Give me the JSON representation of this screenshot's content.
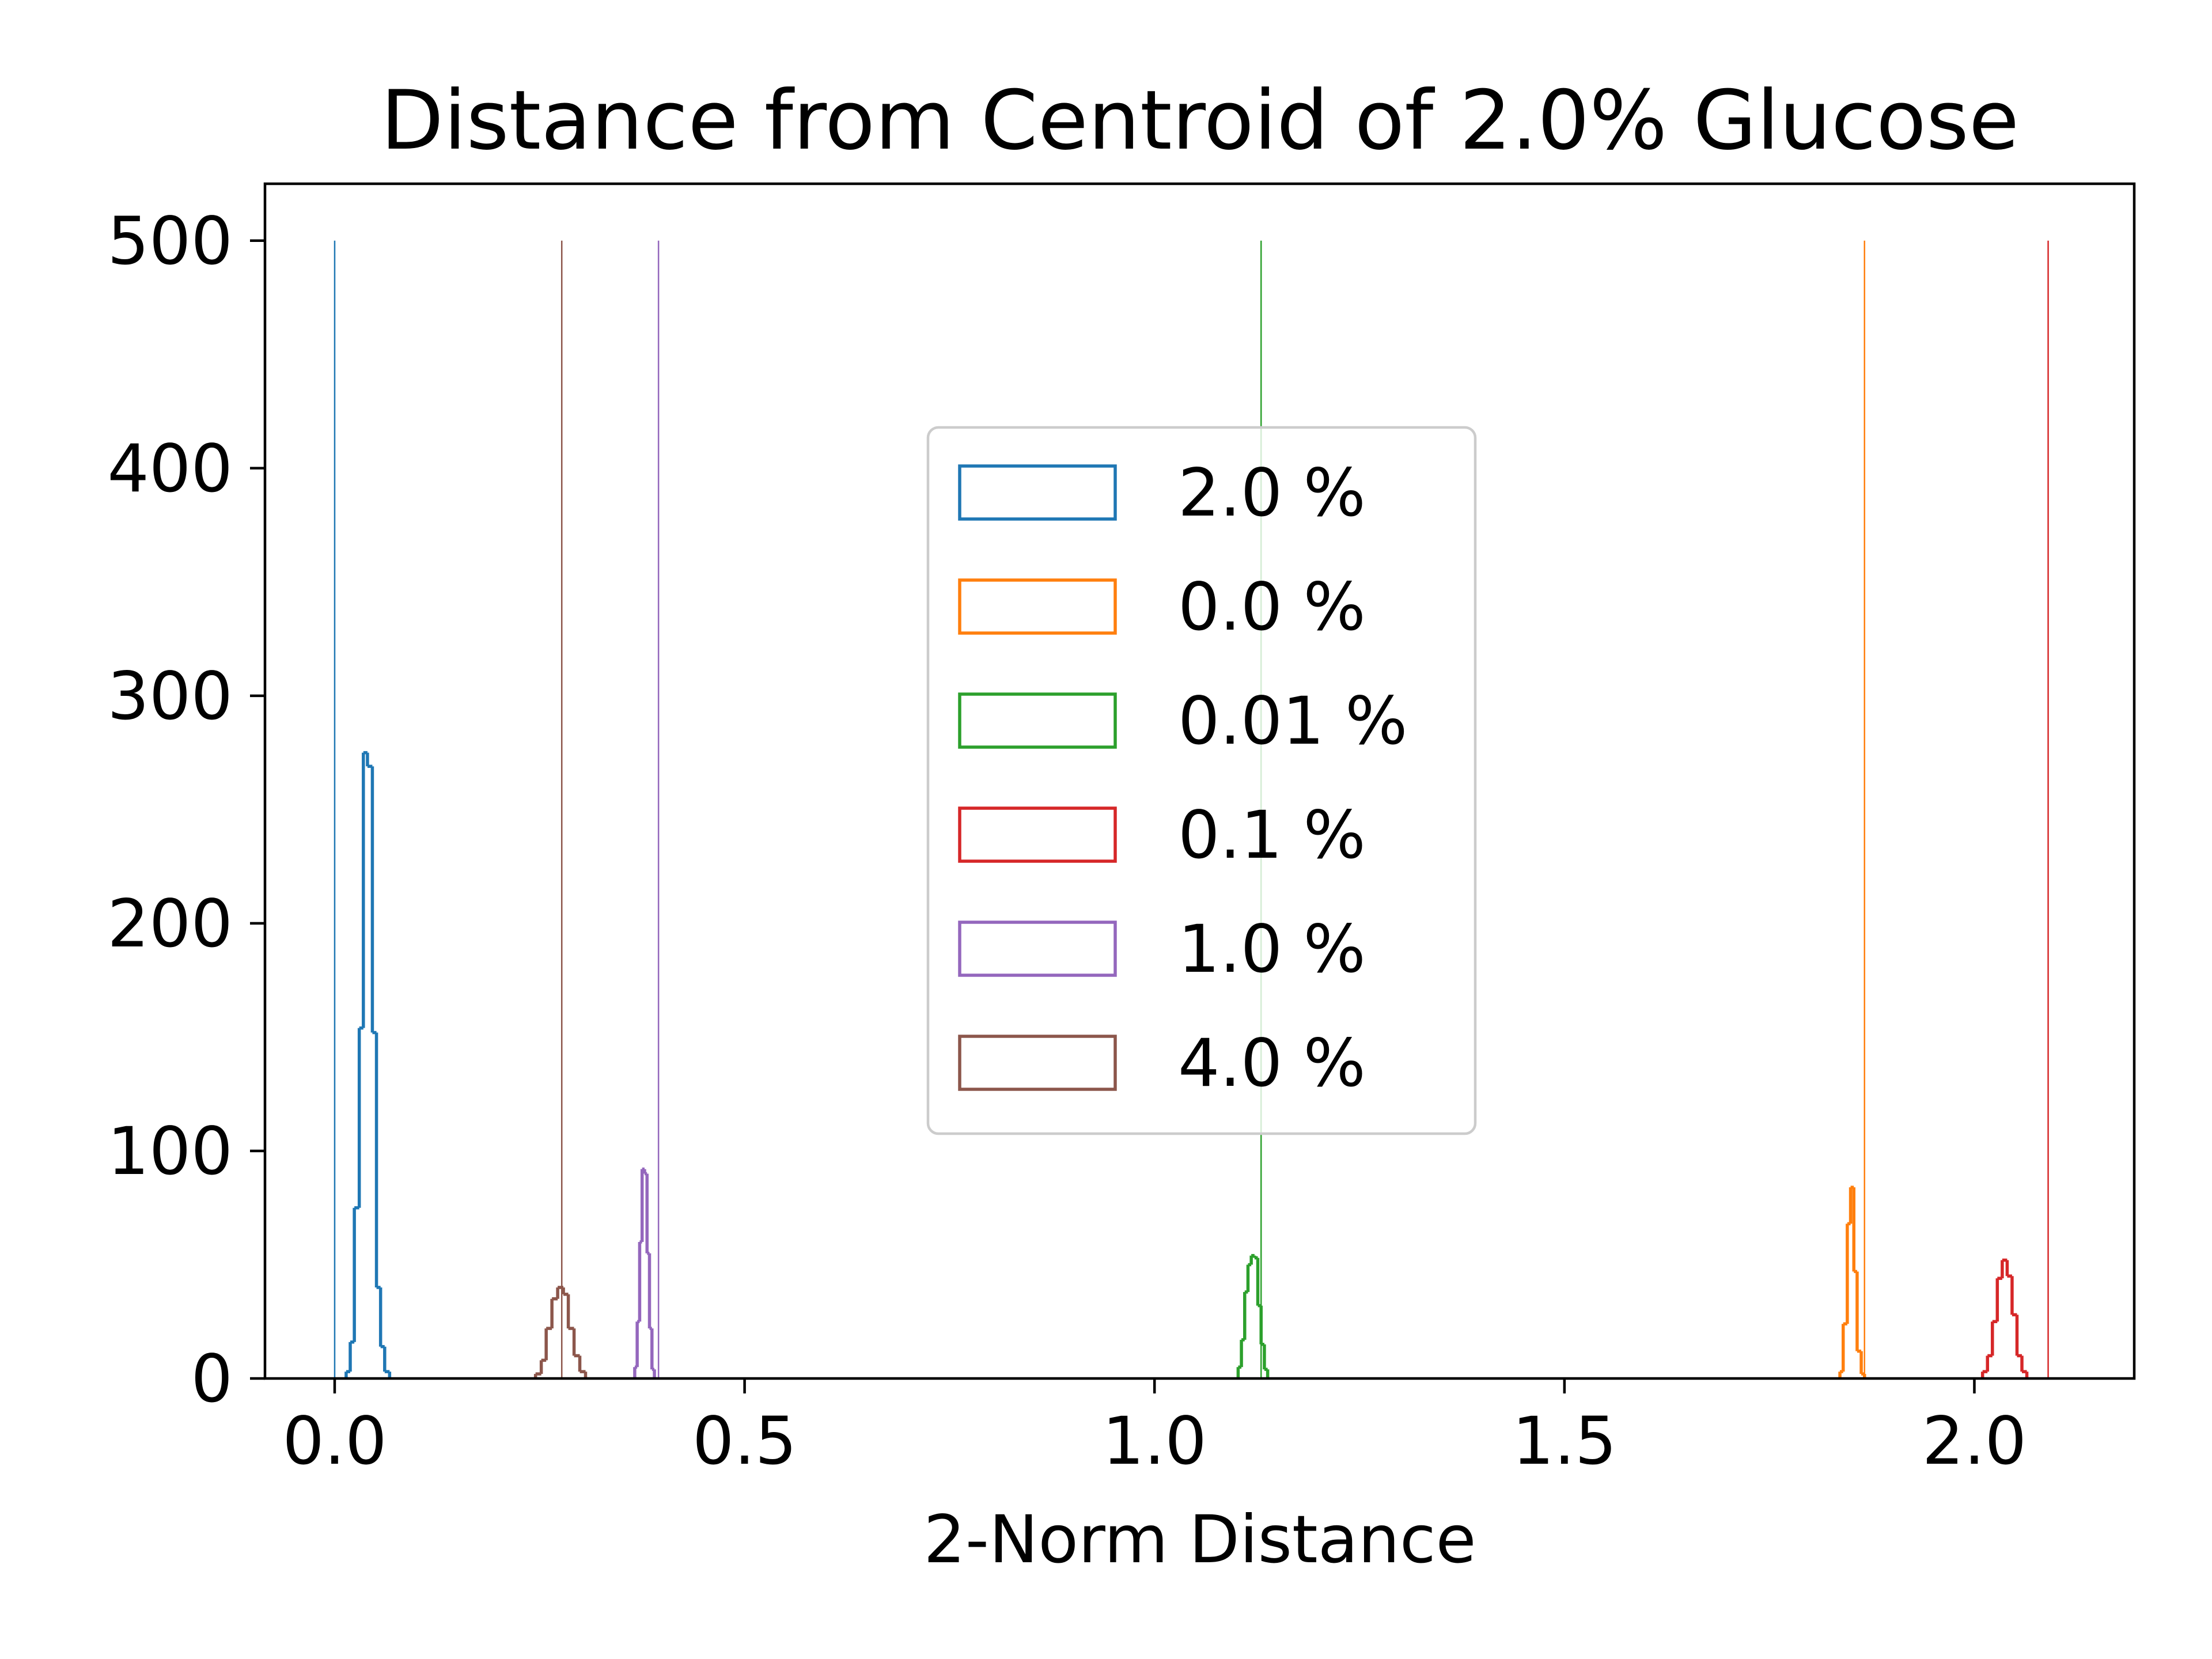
{
  "chart_data": {
    "type": "histogram",
    "title": "Distance from Centroid of 2.0% Glucose",
    "xlabel": "2-Norm Distance",
    "ylabel": "",
    "xlim": [
      -0.085,
      2.195
    ],
    "ylim": [
      0,
      525
    ],
    "xticks": [
      {
        "value": 0.0,
        "label": "0.0"
      },
      {
        "value": 0.5,
        "label": "0.5"
      },
      {
        "value": 1.0,
        "label": "1.0"
      },
      {
        "value": 1.5,
        "label": "1.5"
      },
      {
        "value": 2.0,
        "label": "2.0"
      }
    ],
    "yticks": [
      {
        "value": 0,
        "label": "0"
      },
      {
        "value": 100,
        "label": "100"
      },
      {
        "value": 200,
        "label": "200"
      },
      {
        "value": 300,
        "label": "300"
      },
      {
        "value": 400,
        "label": "400"
      },
      {
        "value": 500,
        "label": "500"
      }
    ],
    "grid": false,
    "legend_position": "center",
    "series": [
      {
        "name": "2.0 %",
        "color": "#1f77b4",
        "histogram_bins": [
          {
            "x0": 0.014,
            "x1": 0.019,
            "count": 3
          },
          {
            "x0": 0.019,
            "x1": 0.024,
            "count": 16
          },
          {
            "x0": 0.024,
            "x1": 0.03,
            "count": 75
          },
          {
            "x0": 0.03,
            "x1": 0.035,
            "count": 154
          },
          {
            "x0": 0.035,
            "x1": 0.04,
            "count": 275
          },
          {
            "x0": 0.04,
            "x1": 0.046,
            "count": 269
          },
          {
            "x0": 0.046,
            "x1": 0.051,
            "count": 152
          },
          {
            "x0": 0.051,
            "x1": 0.056,
            "count": 40
          },
          {
            "x0": 0.056,
            "x1": 0.061,
            "count": 14
          },
          {
            "x0": 0.061,
            "x1": 0.067,
            "count": 3
          }
        ],
        "vline": 0.0
      },
      {
        "name": "0.0 %",
        "color": "#ff7f0e",
        "histogram_bins": [
          {
            "x0": 1.836,
            "x1": 1.84,
            "count": 3
          },
          {
            "x0": 1.84,
            "x1": 1.845,
            "count": 24
          },
          {
            "x0": 1.845,
            "x1": 1.849,
            "count": 68
          },
          {
            "x0": 1.849,
            "x1": 1.853,
            "count": 84
          },
          {
            "x0": 1.853,
            "x1": 1.857,
            "count": 47
          },
          {
            "x0": 1.857,
            "x1": 1.862,
            "count": 12
          },
          {
            "x0": 1.862,
            "x1": 1.866,
            "count": 2
          }
        ],
        "vline": 1.866
      },
      {
        "name": "0.01 %",
        "color": "#2ca02c",
        "histogram_bins": [
          {
            "x0": 1.102,
            "x1": 1.106,
            "count": 5
          },
          {
            "x0": 1.106,
            "x1": 1.11,
            "count": 17
          },
          {
            "x0": 1.11,
            "x1": 1.114,
            "count": 38
          },
          {
            "x0": 1.114,
            "x1": 1.118,
            "count": 50
          },
          {
            "x0": 1.118,
            "x1": 1.122,
            "count": 54
          },
          {
            "x0": 1.122,
            "x1": 1.126,
            "count": 53
          },
          {
            "x0": 1.126,
            "x1": 1.13,
            "count": 32
          },
          {
            "x0": 1.13,
            "x1": 1.134,
            "count": 15
          },
          {
            "x0": 1.134,
            "x1": 1.138,
            "count": 4
          }
        ],
        "vline": 1.13
      },
      {
        "name": "0.1 %",
        "color": "#d62728",
        "histogram_bins": [
          {
            "x0": 2.01,
            "x1": 2.016,
            "count": 3
          },
          {
            "x0": 2.016,
            "x1": 2.022,
            "count": 10
          },
          {
            "x0": 2.022,
            "x1": 2.028,
            "count": 25
          },
          {
            "x0": 2.028,
            "x1": 2.034,
            "count": 44
          },
          {
            "x0": 2.034,
            "x1": 2.04,
            "count": 52
          },
          {
            "x0": 2.04,
            "x1": 2.046,
            "count": 45
          },
          {
            "x0": 2.046,
            "x1": 2.052,
            "count": 28
          },
          {
            "x0": 2.052,
            "x1": 2.058,
            "count": 10
          },
          {
            "x0": 2.058,
            "x1": 2.064,
            "count": 3
          }
        ],
        "vline": 2.09
      },
      {
        "name": "1.0 %",
        "color": "#9467bd",
        "histogram_bins": [
          {
            "x0": 0.366,
            "x1": 0.369,
            "count": 5
          },
          {
            "x0": 0.369,
            "x1": 0.372,
            "count": 25
          },
          {
            "x0": 0.372,
            "x1": 0.375,
            "count": 60
          },
          {
            "x0": 0.375,
            "x1": 0.378,
            "count": 92
          },
          {
            "x0": 0.378,
            "x1": 0.381,
            "count": 90
          },
          {
            "x0": 0.381,
            "x1": 0.384,
            "count": 55
          },
          {
            "x0": 0.384,
            "x1": 0.387,
            "count": 22
          },
          {
            "x0": 0.387,
            "x1": 0.39,
            "count": 4
          }
        ],
        "vline": 0.395
      },
      {
        "name": "4.0 %",
        "color": "#8c564b",
        "histogram_bins": [
          {
            "x0": 0.245,
            "x1": 0.252,
            "count": 2
          },
          {
            "x0": 0.252,
            "x1": 0.258,
            "count": 8
          },
          {
            "x0": 0.258,
            "x1": 0.265,
            "count": 22
          },
          {
            "x0": 0.265,
            "x1": 0.272,
            "count": 35
          },
          {
            "x0": 0.272,
            "x1": 0.279,
            "count": 40
          },
          {
            "x0": 0.279,
            "x1": 0.285,
            "count": 37
          },
          {
            "x0": 0.285,
            "x1": 0.292,
            "count": 22
          },
          {
            "x0": 0.292,
            "x1": 0.299,
            "count": 10
          },
          {
            "x0": 0.299,
            "x1": 0.306,
            "count": 3
          }
        ],
        "vline": 0.277
      }
    ]
  }
}
